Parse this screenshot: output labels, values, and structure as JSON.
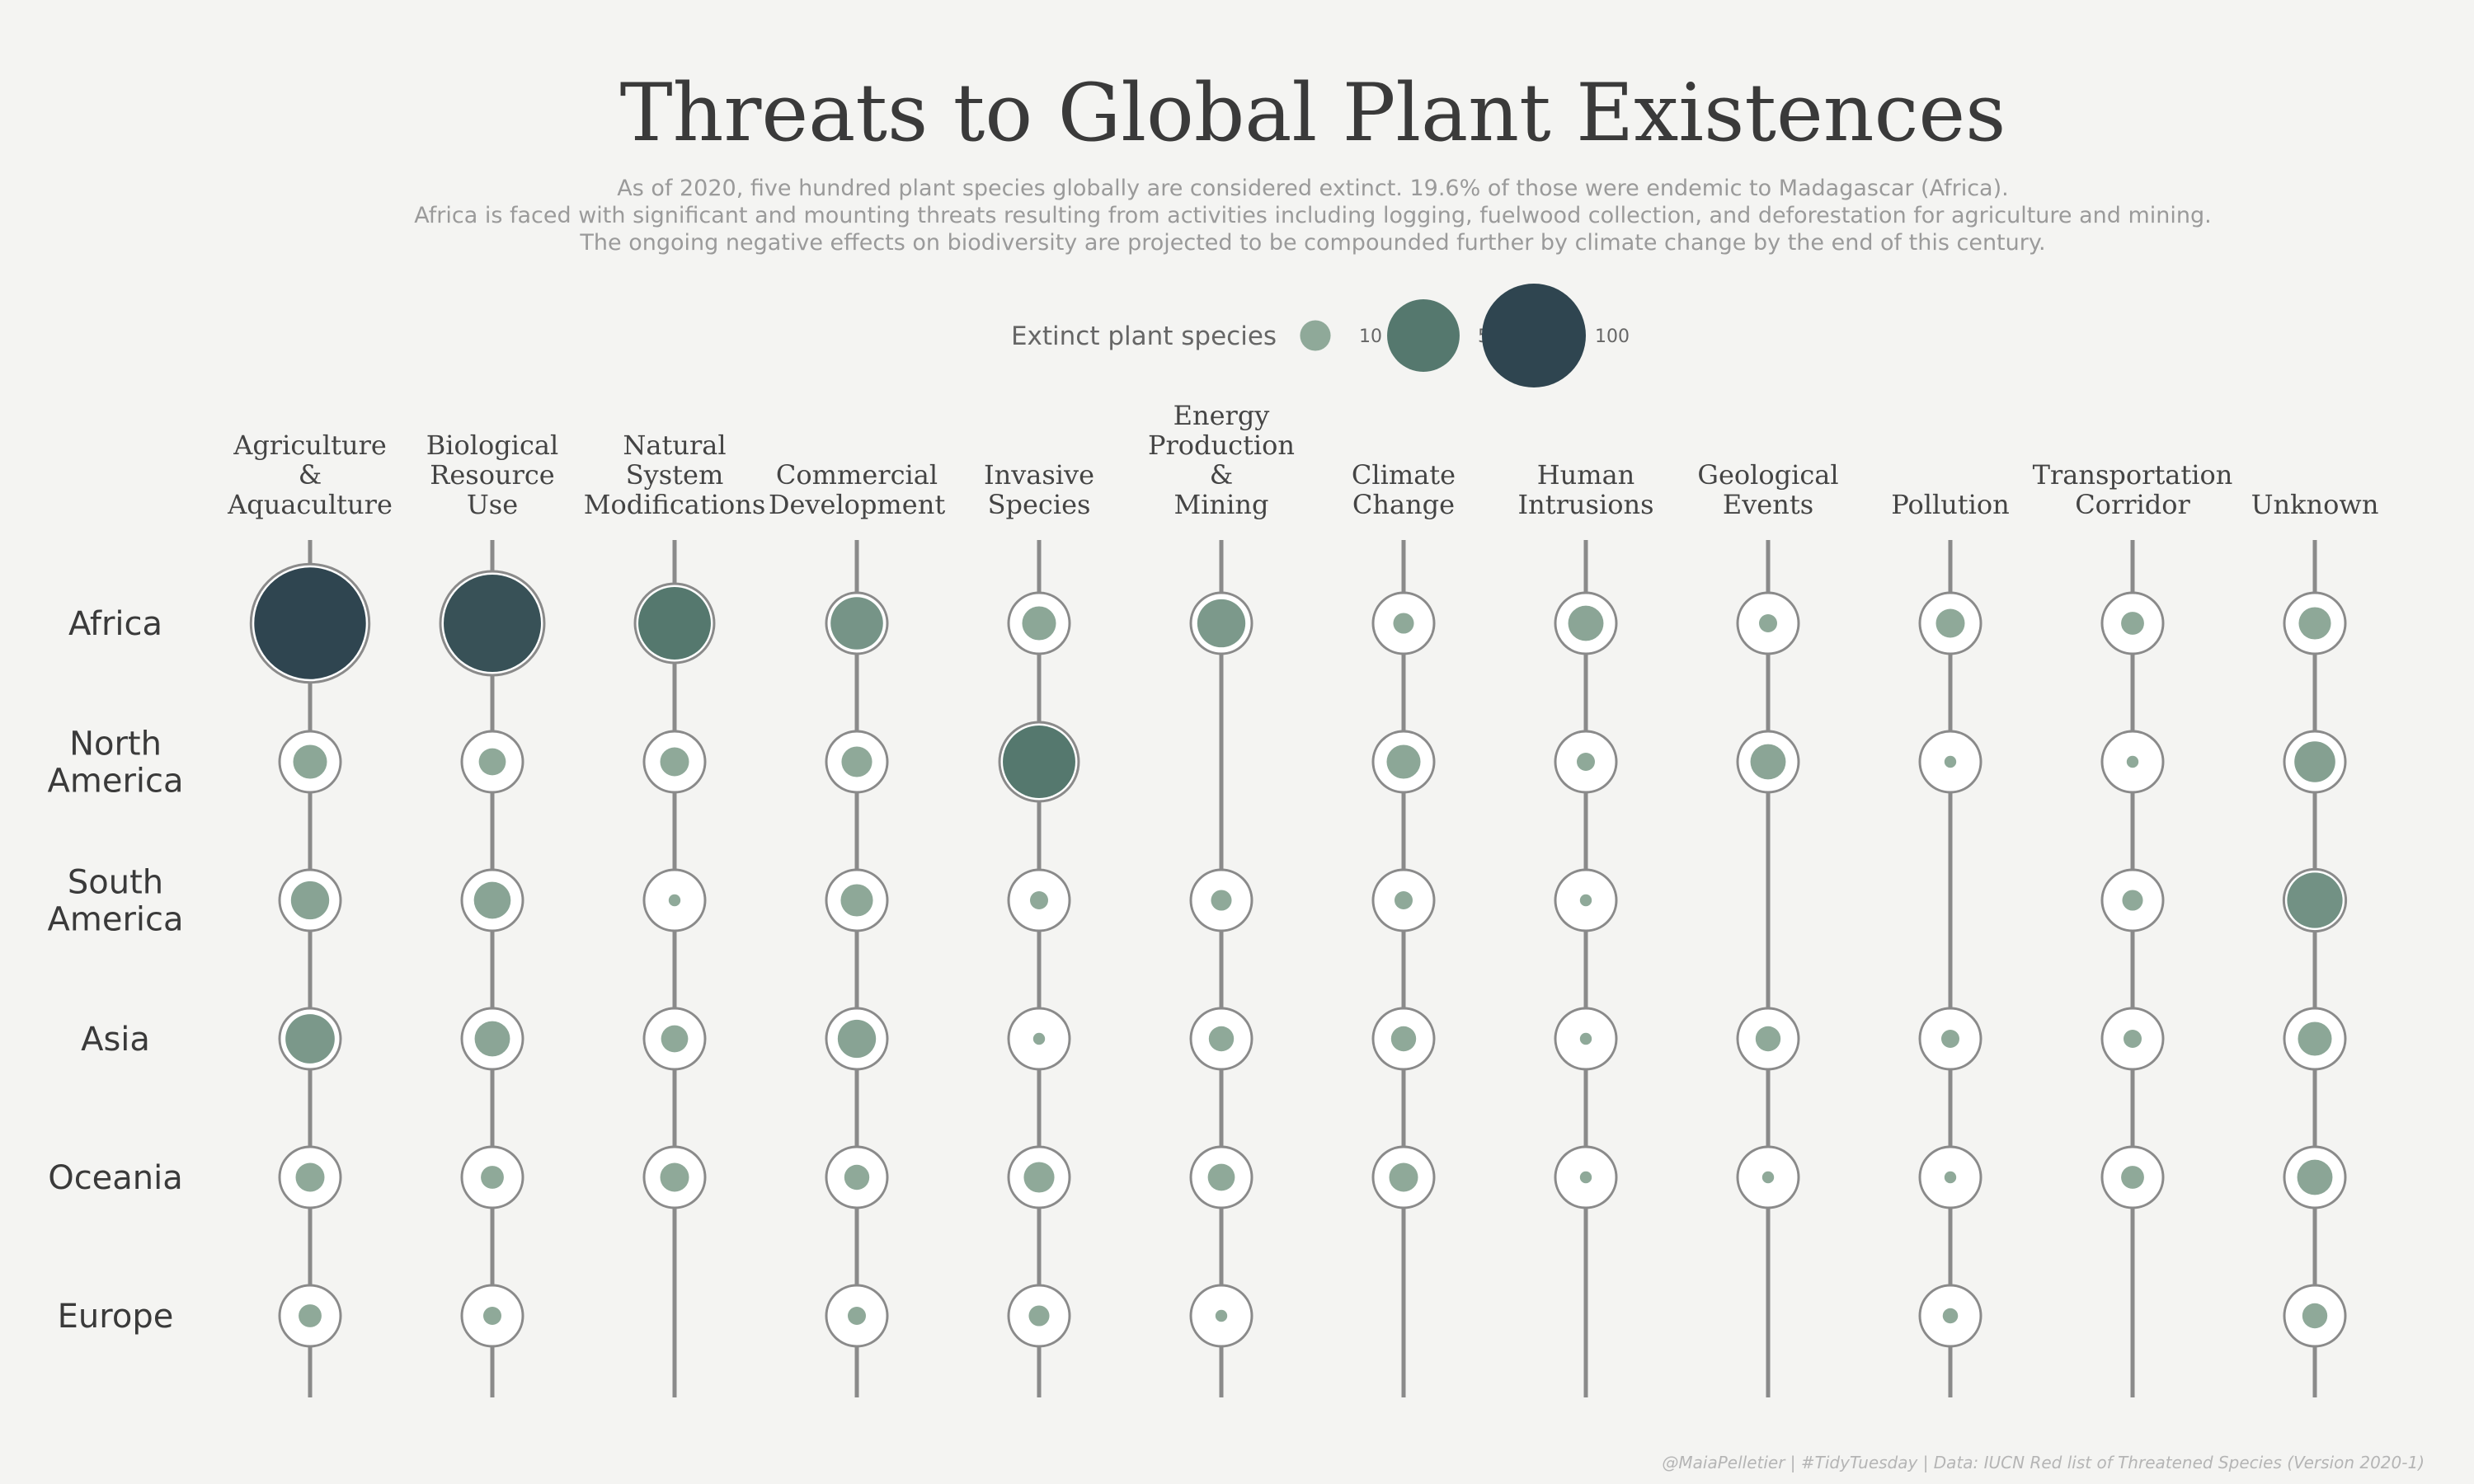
{
  "header": {
    "title": "Threats to Global Plant Existences",
    "subtitle": [
      "As of 2020, five hundred plant species globally are considered extinct. 19.6% of those were endemic to Madagascar (Africa).",
      "Africa is faced with significant and mounting threats resulting from activities including logging, fuelwood collection, and deforestation for agriculture and mining.",
      "The ongoing negative effects on biodiversity are projected to be compounded further by climate change by the end of this century."
    ]
  },
  "legend": {
    "title": "Extinct plant species",
    "items": [
      {
        "label": "10",
        "value": 10,
        "color": "#8fa999"
      },
      {
        "label": "50",
        "value": 50,
        "color": "#55786e"
      },
      {
        "label": "100",
        "value": 100,
        "color": "#2f4550"
      }
    ]
  },
  "caption": "@MaiaPelletier | #TidyTuesday | Data: IUCN Red list of Threatened Species (Version 2020-1)",
  "chart_data": {
    "type": "scatter",
    "encoding": "bubble grid — size and color by extinct plant species count",
    "categories": [
      [
        "Agriculture",
        "&",
        "Aquaculture"
      ],
      [
        "Biological",
        "Resource",
        "Use"
      ],
      [
        "Natural",
        "System",
        "Modifications"
      ],
      [
        "Commercial",
        "Development"
      ],
      [
        "Invasive",
        "Species"
      ],
      [
        "Energy",
        "Production",
        "&",
        "Mining"
      ],
      [
        "Climate",
        "Change"
      ],
      [
        "Human",
        "Intrusions"
      ],
      [
        "Geological",
        "Events"
      ],
      [
        "Pollution"
      ],
      [
        "Transportation",
        "Corridor"
      ],
      [
        "Unknown"
      ]
    ],
    "rows": [
      [
        "Africa"
      ],
      [
        "North",
        "America"
      ],
      [
        "South",
        "America"
      ],
      [
        "Asia"
      ],
      [
        "Oceania"
      ],
      [
        "Europe"
      ]
    ],
    "values": [
      [
        115,
        88,
        50,
        27,
        12,
        23,
        5,
        13,
        4,
        9,
        6,
        11
      ],
      [
        12,
        8,
        9,
        10,
        50,
        null,
        12,
        4,
        13,
        2,
        2,
        17
      ],
      [
        15,
        14,
        2,
        11,
        4,
        5,
        4,
        2,
        null,
        null,
        5,
        30
      ],
      [
        24,
        13,
        8,
        15,
        2,
        7,
        7,
        2,
        7,
        4,
        4,
        12
      ],
      [
        9,
        6,
        9,
        7,
        10,
        8,
        9,
        2,
        2,
        2,
        6,
        13
      ],
      [
        6,
        4,
        null,
        4,
        5,
        2,
        null,
        null,
        null,
        3,
        null,
        7
      ]
    ],
    "color_scale": [
      "#8fa999",
      "#55786e",
      "#2f4550"
    ],
    "legend_values": [
      10,
      50,
      100
    ]
  }
}
